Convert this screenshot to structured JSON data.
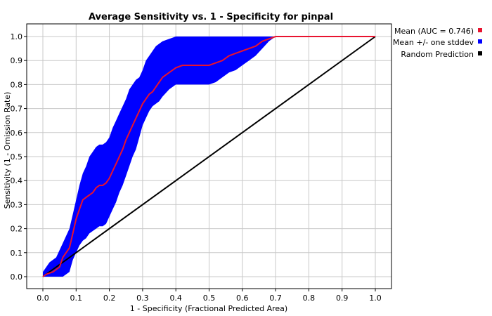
{
  "chart_data": {
    "type": "line",
    "title": "Average Sensitivity vs. 1 - Specificity for pinpal",
    "xlabel": "1 - Specificity (Fractional Predicted Area)",
    "ylabel": "Sensitivity (1 - Omission Rate)",
    "xlim": [
      0.0,
      1.0
    ],
    "ylim": [
      0.0,
      1.0
    ],
    "xticks": [
      "0.0",
      "0.1",
      "0.2",
      "0.3",
      "0.4",
      "0.5",
      "0.6",
      "0.7",
      "0.8",
      "0.9",
      "1.0"
    ],
    "yticks": [
      "0.0",
      "0.1",
      "0.2",
      "0.3",
      "0.4",
      "0.5",
      "0.6",
      "0.7",
      "0.8",
      "0.9",
      "1.0"
    ],
    "grid": true,
    "legend_position": "right",
    "series": [
      {
        "name": "Mean (AUC = 0.746)",
        "color": "#e8132f",
        "x": [
          0.0,
          0.01,
          0.03,
          0.05,
          0.06,
          0.08,
          0.09,
          0.1,
          0.11,
          0.12,
          0.13,
          0.14,
          0.15,
          0.16,
          0.17,
          0.18,
          0.19,
          0.2,
          0.21,
          0.22,
          0.23,
          0.24,
          0.25,
          0.26,
          0.27,
          0.28,
          0.29,
          0.3,
          0.31,
          0.32,
          0.33,
          0.34,
          0.35,
          0.36,
          0.38,
          0.4,
          0.42,
          0.44,
          0.46,
          0.48,
          0.5,
          0.52,
          0.54,
          0.56,
          0.58,
          0.6,
          0.62,
          0.64,
          0.66,
          0.68,
          0.7,
          0.72,
          0.8,
          0.9,
          1.0
        ],
        "y": [
          0.0,
          0.01,
          0.02,
          0.04,
          0.08,
          0.12,
          0.18,
          0.24,
          0.28,
          0.32,
          0.33,
          0.34,
          0.35,
          0.37,
          0.38,
          0.38,
          0.39,
          0.41,
          0.44,
          0.47,
          0.5,
          0.53,
          0.57,
          0.6,
          0.63,
          0.66,
          0.69,
          0.72,
          0.74,
          0.76,
          0.77,
          0.79,
          0.81,
          0.83,
          0.85,
          0.87,
          0.88,
          0.88,
          0.88,
          0.88,
          0.88,
          0.89,
          0.9,
          0.92,
          0.93,
          0.94,
          0.95,
          0.96,
          0.98,
          0.99,
          1.0,
          1.0,
          1.0,
          1.0,
          1.0
        ]
      },
      {
        "name": "Mean +/- one stddev",
        "color": "#0000ff",
        "x": [
          0.0,
          0.02,
          0.04,
          0.06,
          0.08,
          0.09,
          0.1,
          0.11,
          0.12,
          0.13,
          0.14,
          0.15,
          0.16,
          0.17,
          0.18,
          0.19,
          0.2,
          0.21,
          0.22,
          0.23,
          0.24,
          0.25,
          0.26,
          0.27,
          0.28,
          0.29,
          0.3,
          0.31,
          0.32,
          0.33,
          0.34,
          0.35,
          0.36,
          0.38,
          0.4,
          0.42,
          0.44,
          0.46,
          0.48,
          0.5,
          0.52,
          0.54,
          0.56,
          0.58,
          0.6,
          0.62,
          0.64,
          0.66,
          0.68,
          0.7
        ],
        "upper": [
          0.02,
          0.06,
          0.08,
          0.14,
          0.2,
          0.26,
          0.32,
          0.38,
          0.43,
          0.46,
          0.5,
          0.52,
          0.54,
          0.55,
          0.55,
          0.56,
          0.58,
          0.62,
          0.65,
          0.68,
          0.71,
          0.74,
          0.78,
          0.8,
          0.82,
          0.83,
          0.86,
          0.9,
          0.92,
          0.94,
          0.96,
          0.97,
          0.98,
          0.99,
          1.0,
          1.0,
          1.0,
          1.0,
          1.0,
          1.0,
          1.0,
          1.0,
          1.0,
          1.0,
          1.0,
          1.0,
          1.0,
          1.0,
          1.0,
          1.0
        ],
        "lower": [
          0.0,
          0.0,
          0.0,
          0.0,
          0.02,
          0.07,
          0.1,
          0.13,
          0.15,
          0.16,
          0.18,
          0.19,
          0.2,
          0.21,
          0.21,
          0.22,
          0.25,
          0.28,
          0.31,
          0.35,
          0.38,
          0.42,
          0.46,
          0.5,
          0.53,
          0.58,
          0.63,
          0.66,
          0.69,
          0.71,
          0.72,
          0.73,
          0.75,
          0.78,
          0.8,
          0.8,
          0.8,
          0.8,
          0.8,
          0.8,
          0.81,
          0.83,
          0.85,
          0.86,
          0.88,
          0.9,
          0.92,
          0.95,
          0.98,
          1.0
        ]
      },
      {
        "name": "Random Prediction",
        "color": "#000000",
        "x": [
          0.0,
          1.0
        ],
        "y": [
          0.0,
          1.0
        ]
      }
    ]
  }
}
